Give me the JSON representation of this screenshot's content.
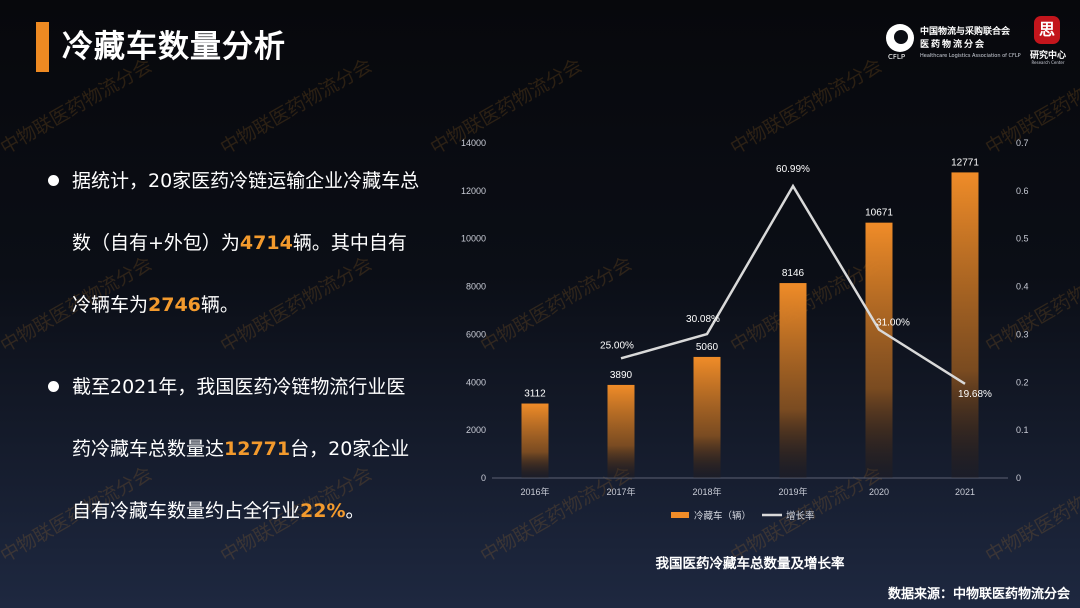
{
  "title": "冷藏车数量分析",
  "org_logo": {
    "line1": "中国物流与采购联合会",
    "line2": "医药物流分会",
    "abbr": "CFLP",
    "english": "Healthcare Logistics Association of CFLP"
  },
  "research_logo": {
    "seal": "思",
    "label": "研究中心",
    "sublabel": "Research Center"
  },
  "bullets": [
    {
      "parts": [
        {
          "text": "据统计，20家医药冷链运输企业冷藏车总数（自有+外包）为"
        },
        {
          "text": "4714",
          "hl": true
        },
        {
          "text": "辆。其中自有冷辆车为"
        },
        {
          "text": "2746",
          "hl": true
        },
        {
          "text": "辆。"
        }
      ]
    },
    {
      "parts": [
        {
          "text": "截至2021年，我国医药冷链物流行业医药冷藏车总数量达"
        },
        {
          "text": "12771",
          "hl": true
        },
        {
          "text": "台，20家企业自有冷藏车数量约占全行业"
        },
        {
          "text": "22%",
          "hl": true
        },
        {
          "text": "。"
        }
      ]
    }
  ],
  "watermark": "中物联医药物流分会",
  "source": "数据来源：中物联医药物流分会",
  "colors": {
    "accent": "#ee8a22",
    "highlight": "#f39a2d",
    "bar_top": "#f08c28",
    "line": "#d9d9d9"
  },
  "chart_data": {
    "type": "bar",
    "title": "我国医药冷藏车总数量及增长率",
    "categories": [
      "2016年",
      "2017年",
      "2018年",
      "2019年",
      "2020",
      "2021"
    ],
    "series": [
      {
        "name": "冷藏车（辆）",
        "type": "bar",
        "axis": "left",
        "values": [
          3112,
          3890,
          5060,
          8146,
          10671,
          12771
        ],
        "labels": [
          "3112",
          "3890",
          "5060",
          "8146",
          "10671",
          "12771"
        ]
      },
      {
        "name": "增长率",
        "type": "line",
        "axis": "right",
        "values": [
          null,
          0.25,
          0.3008,
          0.6099,
          0.31,
          0.1968
        ],
        "labels": [
          "",
          "25.00%",
          "30.08%",
          "60.99%",
          "31.00%",
          "19.68%"
        ]
      }
    ],
    "ylim": [
      0,
      14000
    ],
    "yticks": [
      "0",
      "2000",
      "4000",
      "6000",
      "8000",
      "10000",
      "12000",
      "14000"
    ],
    "y2lim": [
      0,
      0.7
    ],
    "y2ticks": [
      "0",
      "0.1",
      "0.2",
      "0.3",
      "0.4",
      "0.5",
      "0.6",
      "0.7"
    ],
    "legend": "bottom",
    "grid": false
  }
}
